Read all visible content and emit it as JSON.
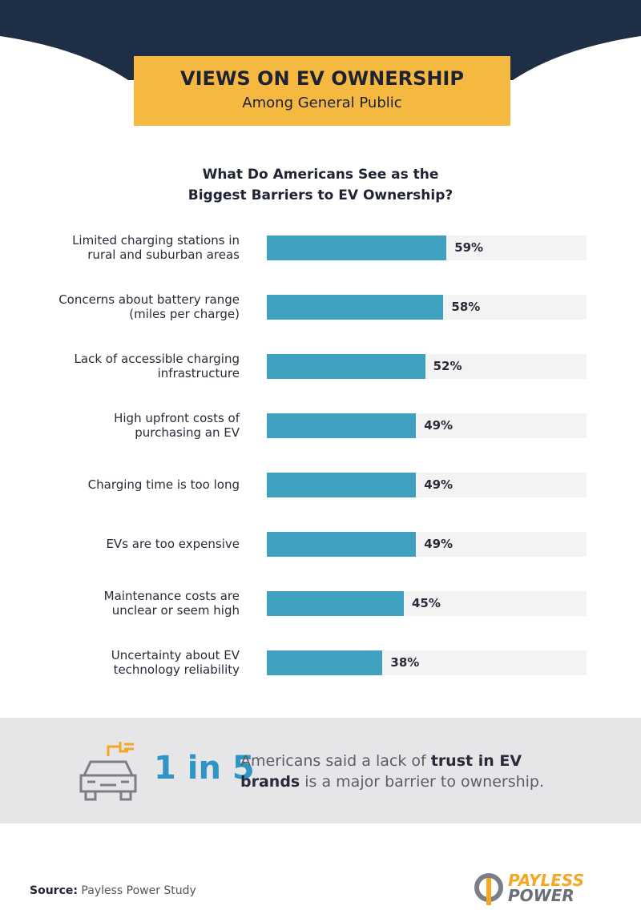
{
  "header": {
    "title": "VIEWS ON EV OWNERSHIP",
    "subtitle": "Among General Public"
  },
  "chart_data": {
    "type": "bar",
    "orientation": "horizontal",
    "title": "What Do Americans See as the Biggest Barriers to EV Ownership?",
    "categories": [
      "Limited charging stations in rural and suburban areas",
      "Concerns about battery range (miles per charge)",
      "Lack of accessible charging infrastructure",
      "High upfront costs of purchasing an EV",
      "Charging time is too long",
      "EVs are too expensive",
      "Maintenance costs are unclear or seem high",
      "Uncertainty about EV technology reliability"
    ],
    "values": [
      59,
      58,
      52,
      49,
      49,
      49,
      45,
      38
    ],
    "value_labels": [
      "59%",
      "58%",
      "52%",
      "49%",
      "49%",
      "49%",
      "45%",
      "38%"
    ],
    "color": "#3fa0c0",
    "track_color": "#f3f3f3",
    "xlim": [
      0,
      105
    ]
  },
  "callout": {
    "highlight": "1 in 5",
    "text": [
      "Americans said a lack of ",
      "trust in EV brands",
      " is a major barrier to ownership."
    ]
  },
  "footer": {
    "source_label": "Source:",
    "source": "Payless Power Study",
    "logo": [
      "PAYLESS",
      "POWER"
    ]
  }
}
